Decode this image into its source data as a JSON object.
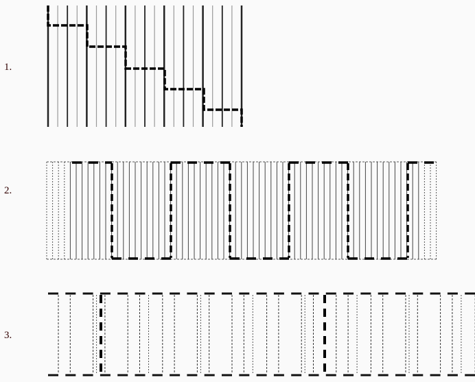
{
  "labels": [
    "1.",
    "2.",
    "3."
  ],
  "colors": {
    "line": "#111111",
    "light_line": "#999999",
    "background": "#fafafa"
  }
}
